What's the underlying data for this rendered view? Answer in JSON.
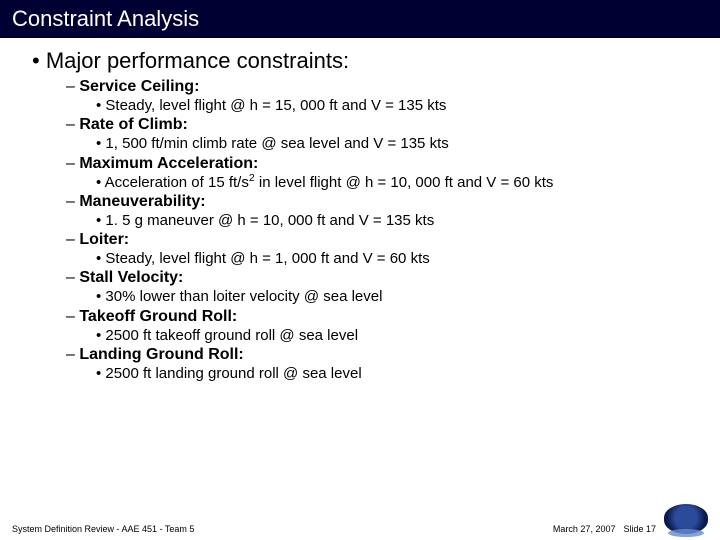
{
  "title": "Constraint Analysis",
  "main_heading": "Major performance constraints:",
  "constraints": [
    {
      "heading": "Service Ceiling:",
      "detail": "Steady, level flight @ h = 15, 000 ft and V = 135 kts"
    },
    {
      "heading": "Rate of Climb:",
      "detail": "1, 500 ft/min climb rate @ sea level and V = 135 kts"
    },
    {
      "heading": "Maximum Acceleration:",
      "detail_html": "Acceleration of 15 ft/s<sup>2</sup> in level flight @ h = 10, 000 ft and V = 60 kts"
    },
    {
      "heading": "Maneuverability:",
      "detail": "1. 5 g maneuver @ h = 10, 000 ft and V = 135 kts"
    },
    {
      "heading": "Loiter:",
      "detail": "Steady, level flight @ h = 1, 000 ft and V = 60 kts"
    },
    {
      "heading": "Stall Velocity:",
      "detail": "30% lower than loiter velocity @ sea level"
    },
    {
      "heading": "Takeoff Ground Roll:",
      "detail": "2500 ft takeoff ground roll @ sea level"
    },
    {
      "heading": "Landing Ground Roll:",
      "detail": "2500 ft landing ground roll @ sea level"
    }
  ],
  "footer_left": "System Definition Review - AAE 451 - Team 5",
  "footer_date": "March 27, 2007",
  "footer_slide": "Slide 17"
}
